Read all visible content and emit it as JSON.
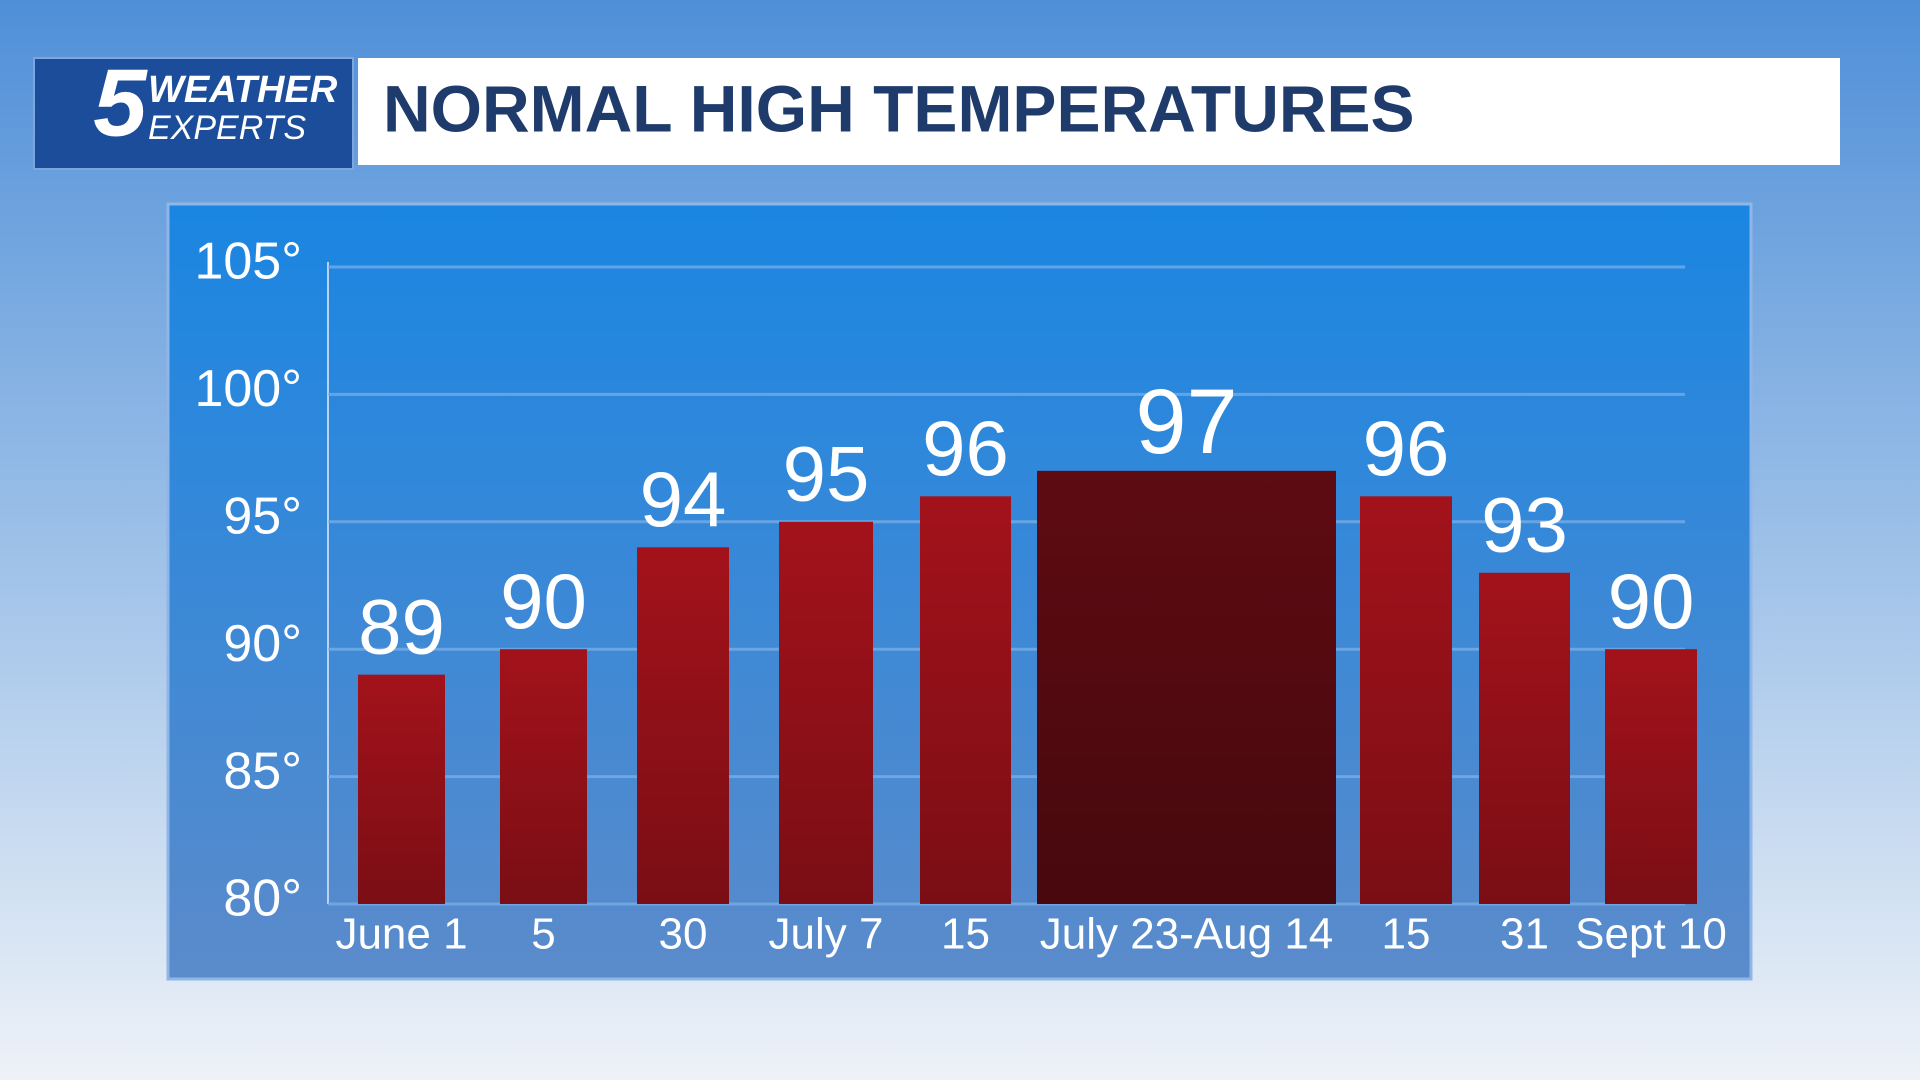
{
  "logo": {
    "number": "5",
    "line1": "WEATHER",
    "line2": "EXPERTS"
  },
  "chart_data": {
    "type": "bar",
    "title": "NORMAL HIGH TEMPERATURES",
    "categories": [
      "June 1",
      "5",
      "30",
      "July 7",
      "15",
      "July 23-Aug 14",
      "15",
      "31",
      "Sept 10"
    ],
    "values": [
      89,
      90,
      94,
      95,
      96,
      97,
      96,
      93,
      90
    ],
    "colors": [
      "#a3121b",
      "#a3121b",
      "#a3121b",
      "#a3121b",
      "#a3121b",
      "#5e0b12",
      "#a3121b",
      "#a3121b",
      "#a3121b"
    ],
    "ylim": [
      80,
      105
    ],
    "yticks": [
      {
        "value": 80,
        "label": "80°"
      },
      {
        "value": 85,
        "label": "85°"
      },
      {
        "value": 90,
        "label": "90°"
      },
      {
        "value": 95,
        "label": "95°"
      },
      {
        "value": 100,
        "label": "100°"
      },
      {
        "value": 105,
        "label": "105°"
      }
    ],
    "grid": true
  }
}
